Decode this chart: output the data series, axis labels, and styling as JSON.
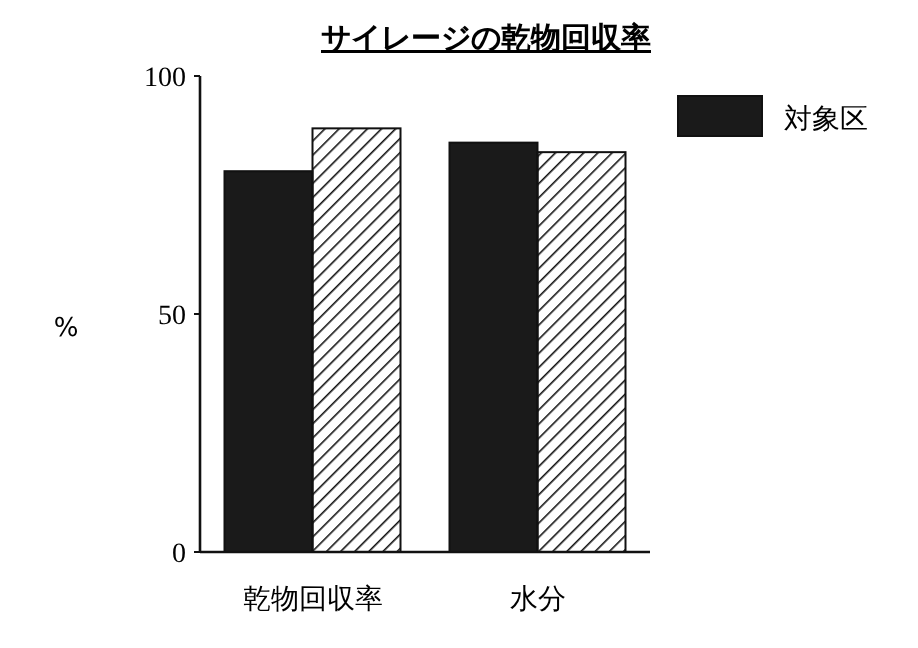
{
  "chart_data": {
    "type": "bar",
    "title": "サイレージの乾物回収率",
    "ylabel": "%",
    "categories": [
      "乾物回収率",
      "水分"
    ],
    "series": [
      {
        "name": "対象区",
        "color": "#1a1a1a",
        "values": [
          80,
          86
        ]
      },
      {
        "color": "#111111",
        "values": [
          89,
          84
        ]
      }
    ],
    "ylim": [
      0,
      100
    ],
    "yticks": [
      0,
      50,
      100
    ],
    "legend": "right",
    "grid": false
  }
}
